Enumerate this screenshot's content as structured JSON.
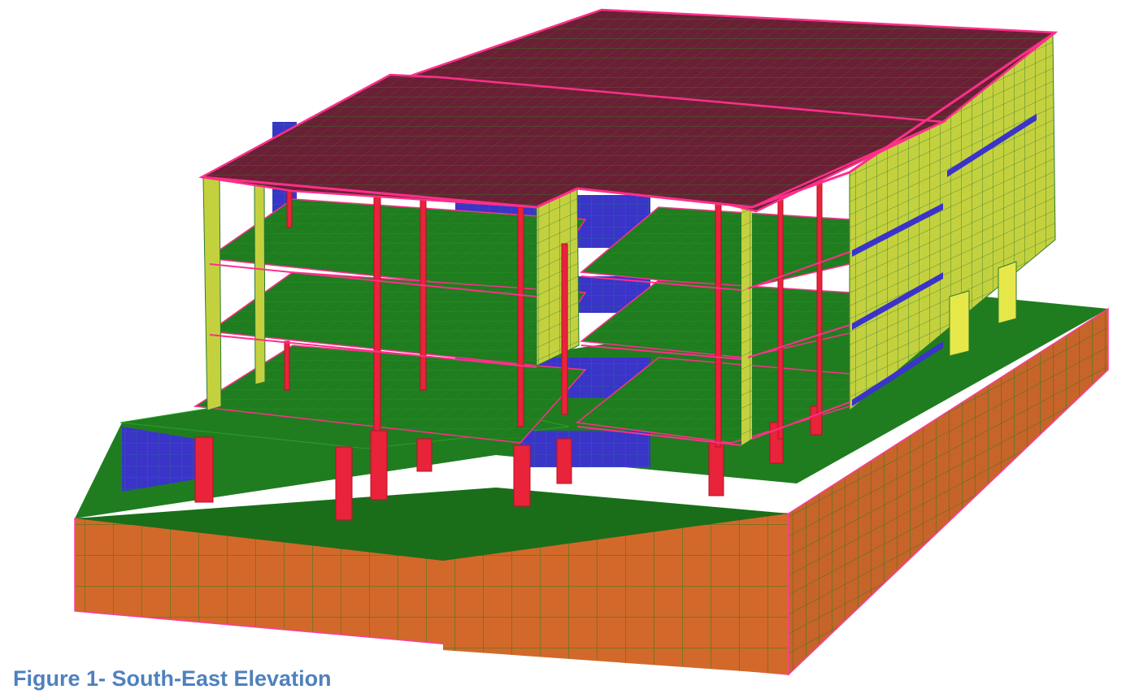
{
  "figure": {
    "caption": "Figure 1- South-East Elevation",
    "colors": {
      "roof": "#6b1f35",
      "slab": "#1f7d1f",
      "wall": "#c4d13f",
      "wall_dark": "#a9b532",
      "core": "#3a34c9",
      "column": "#e8233a",
      "beam_edge": "#ff2f8a",
      "podium_front": "#d2692a",
      "podium_side": "#c7642a",
      "mesh": "#1c7a1c",
      "pile": "#e6e84a"
    }
  }
}
